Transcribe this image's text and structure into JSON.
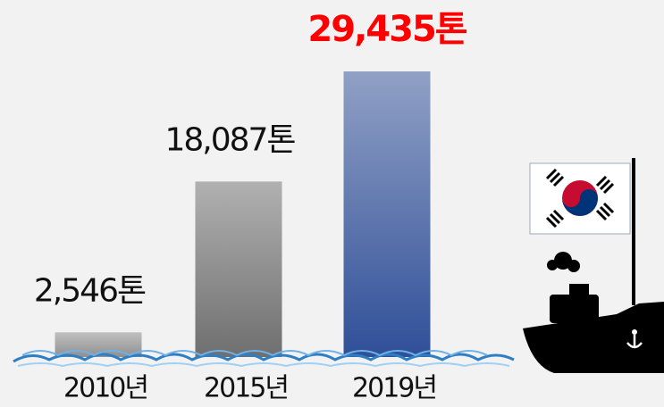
{
  "chart_data": {
    "type": "bar",
    "categories": [
      "2010년",
      "2015년",
      "2019년"
    ],
    "values": [
      2546,
      18087,
      29435
    ],
    "value_labels": [
      "2,546톤",
      "18,087톤",
      "29,435톤"
    ],
    "colors": [
      "#8f8f8f",
      "#6f6f6f",
      "#2f4f98"
    ],
    "value_label_colors": [
      "#111111",
      "#111111",
      "#ff0000"
    ]
  }
}
